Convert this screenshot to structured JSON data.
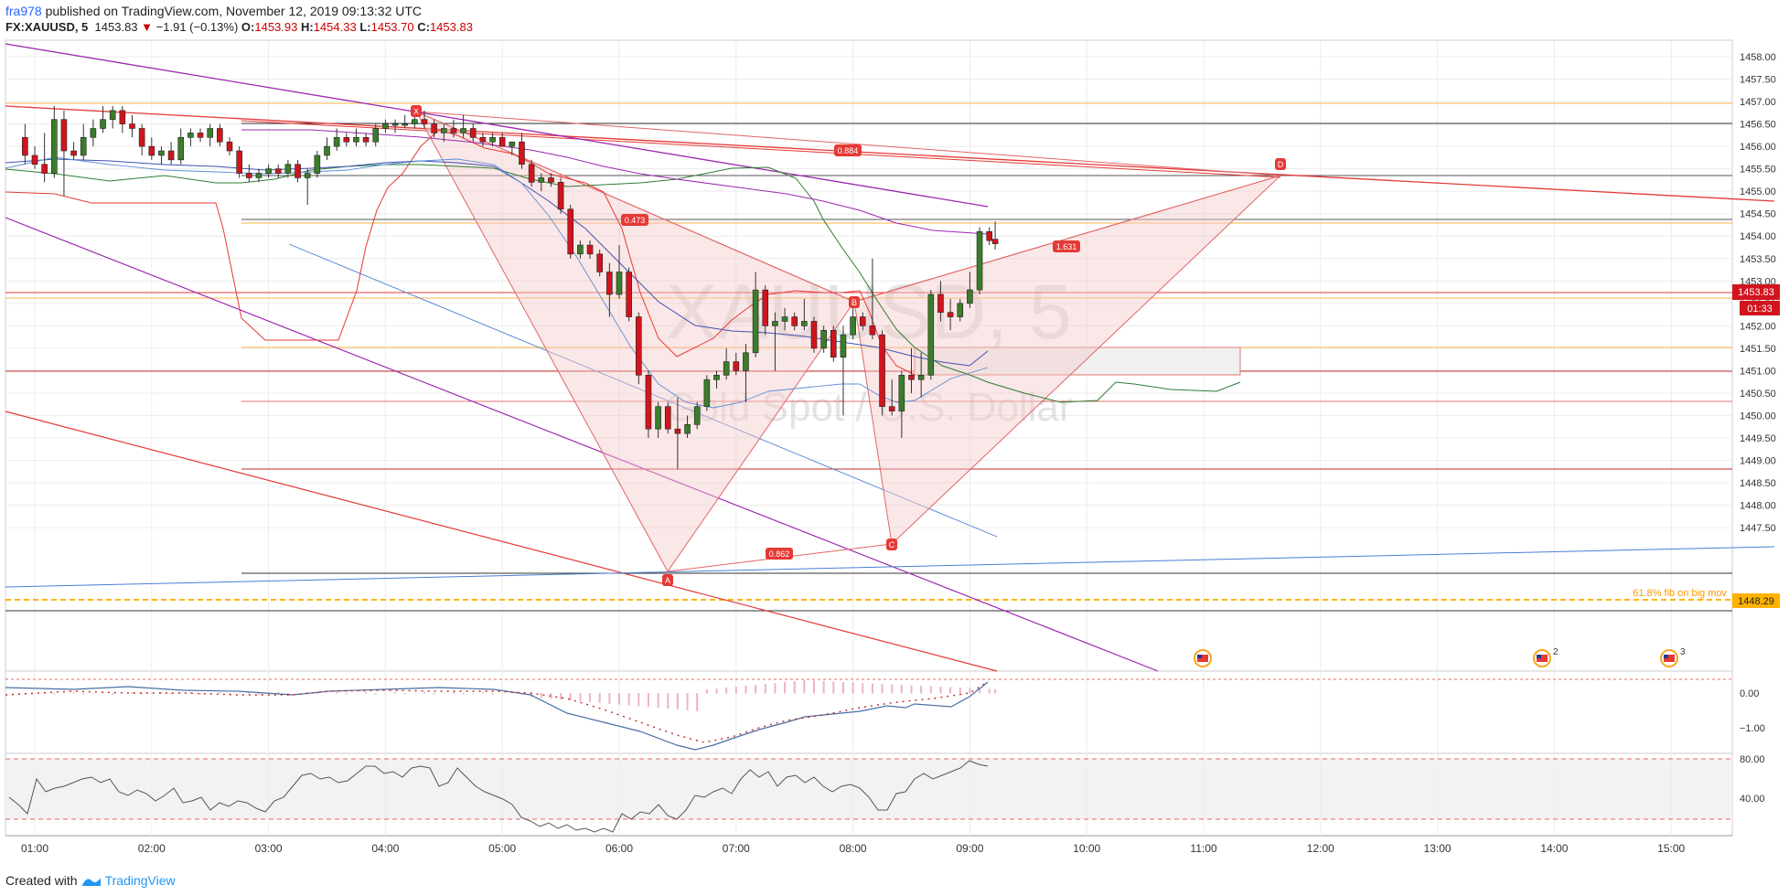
{
  "header": {
    "author": "fra978",
    "published_text": "published on TradingView.com, November 12, 2019 09:13:32 UTC",
    "symbol": "FX:XAUUSD, 5",
    "last": "1453.83",
    "change": "−1.91 (−0.13%)",
    "ohlc": {
      "o_label": "O:",
      "o": "1453.93",
      "h_label": "H:",
      "h": "1454.33",
      "l_label": "L:",
      "l": "1453.70",
      "c_label": "C:",
      "c": "1453.83"
    }
  },
  "watermark": {
    "title": "XAUUSD, 5",
    "subtitle": "Gold Spot / U.S. Dollar"
  },
  "price_tag": {
    "price": "1453.83",
    "countdown": "01:33"
  },
  "fib_label": "61.8% fib on big mov",
  "fib_price": "1448.29",
  "pattern_labels": {
    "X": "X",
    "A": "A",
    "B": "B",
    "C": "C",
    "D": "D",
    "r_xab": "0.473",
    "r_abc": "0.862",
    "r_bcd": "1.631",
    "r_xad": "0.884"
  },
  "event_badges": [
    "2",
    "3"
  ],
  "footer": {
    "created": "Created with",
    "brand": "TradingView"
  },
  "colors": {
    "bull": "#3a7d2a",
    "bear": "#d1141d",
    "pattern_fill": "#f4c9c9",
    "pattern_line": "#e06666",
    "fib": "#ffb300"
  },
  "chart_data": {
    "type": "candlestick",
    "symbol": "FX:XAUUSD",
    "interval": "5",
    "x_ticks": [
      "01:00",
      "02:00",
      "03:00",
      "04:00",
      "05:00",
      "06:00",
      "07:00",
      "08:00",
      "09:00",
      "10:00",
      "11:00",
      "12:00",
      "13:00",
      "14:00",
      "15:00"
    ],
    "y_ticks": [
      "1458.00",
      "1457.50",
      "1457.00",
      "1456.50",
      "1456.00",
      "1455.50",
      "1455.00",
      "1454.50",
      "1454.00",
      "1453.50",
      "1453.00",
      "1452.50",
      "1452.00",
      "1451.50",
      "1451.00",
      "1450.50",
      "1450.00",
      "1449.50",
      "1449.00",
      "1448.50",
      "1448.00",
      "1447.50"
    ],
    "ylim": [
      1447.2,
      1458.2
    ],
    "macd_ticks": [
      "0.00",
      "−1.00"
    ],
    "rsi_ticks": [
      "80.00",
      "40.00"
    ],
    "candles": [
      {
        "t": "00:55",
        "o": 1456.2,
        "h": 1456.5,
        "l": 1455.6,
        "c": 1455.8
      },
      {
        "t": "01:00",
        "o": 1455.8,
        "h": 1456.0,
        "l": 1455.5,
        "c": 1455.6
      },
      {
        "t": "01:05",
        "o": 1455.6,
        "h": 1456.3,
        "l": 1455.2,
        "c": 1455.4
      },
      {
        "t": "01:10",
        "o": 1455.4,
        "h": 1456.9,
        "l": 1455.3,
        "c": 1456.6
      },
      {
        "t": "01:15",
        "o": 1456.6,
        "h": 1456.8,
        "l": 1454.9,
        "c": 1455.9
      },
      {
        "t": "01:20",
        "o": 1455.9,
        "h": 1456.1,
        "l": 1455.7,
        "c": 1455.8
      },
      {
        "t": "01:25",
        "o": 1455.8,
        "h": 1456.5,
        "l": 1455.7,
        "c": 1456.2
      },
      {
        "t": "01:30",
        "o": 1456.2,
        "h": 1456.6,
        "l": 1456.0,
        "c": 1456.4
      },
      {
        "t": "01:35",
        "o": 1456.4,
        "h": 1456.9,
        "l": 1456.3,
        "c": 1456.6
      },
      {
        "t": "01:40",
        "o": 1456.6,
        "h": 1456.9,
        "l": 1456.4,
        "c": 1456.8
      },
      {
        "t": "01:45",
        "o": 1456.8,
        "h": 1456.9,
        "l": 1456.3,
        "c": 1456.5
      },
      {
        "t": "01:50",
        "o": 1456.5,
        "h": 1456.7,
        "l": 1456.2,
        "c": 1456.4
      },
      {
        "t": "01:55",
        "o": 1456.4,
        "h": 1456.5,
        "l": 1455.8,
        "c": 1456.0
      },
      {
        "t": "02:00",
        "o": 1456.0,
        "h": 1456.2,
        "l": 1455.7,
        "c": 1455.8
      },
      {
        "t": "02:05",
        "o": 1455.8,
        "h": 1456.0,
        "l": 1455.6,
        "c": 1455.9
      },
      {
        "t": "02:10",
        "o": 1455.9,
        "h": 1456.1,
        "l": 1455.6,
        "c": 1455.7
      },
      {
        "t": "02:15",
        "o": 1455.7,
        "h": 1456.4,
        "l": 1455.6,
        "c": 1456.2
      },
      {
        "t": "02:20",
        "o": 1456.2,
        "h": 1456.4,
        "l": 1456.0,
        "c": 1456.3
      },
      {
        "t": "02:25",
        "o": 1456.3,
        "h": 1456.4,
        "l": 1456.1,
        "c": 1456.2
      },
      {
        "t": "02:30",
        "o": 1456.2,
        "h": 1456.5,
        "l": 1456.0,
        "c": 1456.4
      },
      {
        "t": "02:35",
        "o": 1456.4,
        "h": 1456.5,
        "l": 1456.0,
        "c": 1456.1
      },
      {
        "t": "02:40",
        "o": 1456.1,
        "h": 1456.2,
        "l": 1455.8,
        "c": 1455.9
      },
      {
        "t": "02:45",
        "o": 1455.9,
        "h": 1456.0,
        "l": 1455.3,
        "c": 1455.4
      },
      {
        "t": "02:50",
        "o": 1455.4,
        "h": 1455.6,
        "l": 1455.2,
        "c": 1455.3
      },
      {
        "t": "02:55",
        "o": 1455.3,
        "h": 1455.5,
        "l": 1455.2,
        "c": 1455.4
      },
      {
        "t": "03:00",
        "o": 1455.4,
        "h": 1455.6,
        "l": 1455.3,
        "c": 1455.5
      },
      {
        "t": "03:05",
        "o": 1455.5,
        "h": 1455.6,
        "l": 1455.3,
        "c": 1455.4
      },
      {
        "t": "03:10",
        "o": 1455.4,
        "h": 1455.7,
        "l": 1455.3,
        "c": 1455.6
      },
      {
        "t": "03:15",
        "o": 1455.6,
        "h": 1455.7,
        "l": 1455.2,
        "c": 1455.3
      },
      {
        "t": "03:20",
        "o": 1455.3,
        "h": 1455.5,
        "l": 1454.7,
        "c": 1455.4
      },
      {
        "t": "03:25",
        "o": 1455.4,
        "h": 1455.9,
        "l": 1455.3,
        "c": 1455.8
      },
      {
        "t": "03:30",
        "o": 1455.8,
        "h": 1456.2,
        "l": 1455.7,
        "c": 1456.0
      },
      {
        "t": "03:35",
        "o": 1456.0,
        "h": 1456.4,
        "l": 1455.9,
        "c": 1456.2
      },
      {
        "t": "03:40",
        "o": 1456.2,
        "h": 1456.3,
        "l": 1456.0,
        "c": 1456.1
      },
      {
        "t": "03:45",
        "o": 1456.1,
        "h": 1456.4,
        "l": 1456.0,
        "c": 1456.2
      },
      {
        "t": "03:50",
        "o": 1456.2,
        "h": 1456.3,
        "l": 1456.0,
        "c": 1456.1
      },
      {
        "t": "03:55",
        "o": 1456.1,
        "h": 1456.5,
        "l": 1456.0,
        "c": 1456.4
      },
      {
        "t": "04:00",
        "o": 1456.4,
        "h": 1456.6,
        "l": 1456.3,
        "c": 1456.5
      },
      {
        "t": "04:05",
        "o": 1456.5,
        "h": 1456.6,
        "l": 1456.3,
        "c": 1456.5
      },
      {
        "t": "04:10",
        "o": 1456.5,
        "h": 1456.7,
        "l": 1456.4,
        "c": 1456.5
      },
      {
        "t": "04:15",
        "o": 1456.5,
        "h": 1456.8,
        "l": 1456.4,
        "c": 1456.6
      },
      {
        "t": "04:20",
        "o": 1456.6,
        "h": 1456.8,
        "l": 1456.4,
        "c": 1456.5
      },
      {
        "t": "04:25",
        "o": 1456.5,
        "h": 1456.6,
        "l": 1456.2,
        "c": 1456.3
      },
      {
        "t": "04:30",
        "o": 1456.3,
        "h": 1456.5,
        "l": 1456.1,
        "c": 1456.4
      },
      {
        "t": "04:35",
        "o": 1456.4,
        "h": 1456.6,
        "l": 1456.2,
        "c": 1456.3
      },
      {
        "t": "04:40",
        "o": 1456.3,
        "h": 1456.7,
        "l": 1456.2,
        "c": 1456.4
      },
      {
        "t": "04:45",
        "o": 1456.4,
        "h": 1456.5,
        "l": 1456.1,
        "c": 1456.2
      },
      {
        "t": "04:50",
        "o": 1456.2,
        "h": 1456.3,
        "l": 1456.0,
        "c": 1456.1
      },
      {
        "t": "04:55",
        "o": 1456.1,
        "h": 1456.3,
        "l": 1456.0,
        "c": 1456.2
      },
      {
        "t": "05:00",
        "o": 1456.2,
        "h": 1456.3,
        "l": 1456.0,
        "c": 1456.0
      },
      {
        "t": "05:05",
        "o": 1456.0,
        "h": 1456.1,
        "l": 1455.8,
        "c": 1456.1
      },
      {
        "t": "05:10",
        "o": 1456.1,
        "h": 1456.3,
        "l": 1455.5,
        "c": 1455.6
      },
      {
        "t": "05:15",
        "o": 1455.6,
        "h": 1455.7,
        "l": 1455.1,
        "c": 1455.2
      },
      {
        "t": "05:20",
        "o": 1455.2,
        "h": 1455.4,
        "l": 1455.0,
        "c": 1455.3
      },
      {
        "t": "05:25",
        "o": 1455.3,
        "h": 1455.4,
        "l": 1455.1,
        "c": 1455.2
      },
      {
        "t": "05:30",
        "o": 1455.2,
        "h": 1455.3,
        "l": 1454.5,
        "c": 1454.6
      },
      {
        "t": "05:35",
        "o": 1454.6,
        "h": 1454.7,
        "l": 1453.5,
        "c": 1453.6
      },
      {
        "t": "05:40",
        "o": 1453.6,
        "h": 1453.9,
        "l": 1453.5,
        "c": 1453.8
      },
      {
        "t": "05:45",
        "o": 1453.8,
        "h": 1453.9,
        "l": 1453.5,
        "c": 1453.6
      },
      {
        "t": "05:50",
        "o": 1453.6,
        "h": 1453.7,
        "l": 1453.1,
        "c": 1453.2
      },
      {
        "t": "05:55",
        "o": 1453.2,
        "h": 1453.4,
        "l": 1452.2,
        "c": 1452.7
      },
      {
        "t": "06:00",
        "o": 1452.7,
        "h": 1453.8,
        "l": 1452.6,
        "c": 1453.2
      },
      {
        "t": "06:05",
        "o": 1453.2,
        "h": 1453.3,
        "l": 1452.1,
        "c": 1452.2
      },
      {
        "t": "06:10",
        "o": 1452.2,
        "h": 1452.3,
        "l": 1450.7,
        "c": 1450.9
      },
      {
        "t": "06:15",
        "o": 1450.9,
        "h": 1451.0,
        "l": 1449.5,
        "c": 1449.7
      },
      {
        "t": "06:20",
        "o": 1449.7,
        "h": 1450.3,
        "l": 1449.5,
        "c": 1450.2
      },
      {
        "t": "06:25",
        "o": 1450.2,
        "h": 1450.3,
        "l": 1449.6,
        "c": 1449.7
      },
      {
        "t": "06:30",
        "o": 1449.7,
        "h": 1450.4,
        "l": 1448.8,
        "c": 1449.6
      },
      {
        "t": "06:35",
        "o": 1449.6,
        "h": 1450.0,
        "l": 1449.5,
        "c": 1449.8
      },
      {
        "t": "06:40",
        "o": 1449.8,
        "h": 1450.3,
        "l": 1449.7,
        "c": 1450.2
      },
      {
        "t": "06:45",
        "o": 1450.2,
        "h": 1450.9,
        "l": 1450.1,
        "c": 1450.8
      },
      {
        "t": "06:50",
        "o": 1450.8,
        "h": 1451.0,
        "l": 1450.6,
        "c": 1450.9
      },
      {
        "t": "06:55",
        "o": 1450.9,
        "h": 1451.5,
        "l": 1450.8,
        "c": 1451.2
      },
      {
        "t": "07:00",
        "o": 1451.2,
        "h": 1451.4,
        "l": 1450.9,
        "c": 1451.0
      },
      {
        "t": "07:05",
        "o": 1451.0,
        "h": 1451.6,
        "l": 1450.3,
        "c": 1451.4
      },
      {
        "t": "07:10",
        "o": 1451.4,
        "h": 1453.2,
        "l": 1451.3,
        "c": 1452.8
      },
      {
        "t": "07:15",
        "o": 1452.8,
        "h": 1452.9,
        "l": 1451.8,
        "c": 1452.0
      },
      {
        "t": "07:20",
        "o": 1452.0,
        "h": 1452.3,
        "l": 1451.0,
        "c": 1452.1
      },
      {
        "t": "07:25",
        "o": 1452.1,
        "h": 1452.4,
        "l": 1451.9,
        "c": 1452.2
      },
      {
        "t": "07:30",
        "o": 1452.2,
        "h": 1452.3,
        "l": 1451.9,
        "c": 1452.0
      },
      {
        "t": "07:35",
        "o": 1452.0,
        "h": 1452.6,
        "l": 1451.9,
        "c": 1452.1
      },
      {
        "t": "07:40",
        "o": 1452.1,
        "h": 1452.2,
        "l": 1451.4,
        "c": 1451.5
      },
      {
        "t": "07:45",
        "o": 1451.5,
        "h": 1452.0,
        "l": 1451.4,
        "c": 1451.9
      },
      {
        "t": "07:50",
        "o": 1451.9,
        "h": 1452.0,
        "l": 1451.2,
        "c": 1451.3
      },
      {
        "t": "07:55",
        "o": 1451.3,
        "h": 1452.0,
        "l": 1450.0,
        "c": 1451.8
      },
      {
        "t": "08:00",
        "o": 1451.8,
        "h": 1452.4,
        "l": 1451.7,
        "c": 1452.2
      },
      {
        "t": "08:05",
        "o": 1452.2,
        "h": 1452.3,
        "l": 1451.9,
        "c": 1452.0
      },
      {
        "t": "08:10",
        "o": 1452.0,
        "h": 1453.5,
        "l": 1451.7,
        "c": 1451.8
      },
      {
        "t": "08:15",
        "o": 1451.8,
        "h": 1451.9,
        "l": 1450.0,
        "c": 1450.2
      },
      {
        "t": "08:20",
        "o": 1450.2,
        "h": 1450.8,
        "l": 1450.0,
        "c": 1450.1
      },
      {
        "t": "08:25",
        "o": 1450.1,
        "h": 1451.0,
        "l": 1449.5,
        "c": 1450.9
      },
      {
        "t": "08:30",
        "o": 1450.9,
        "h": 1451.5,
        "l": 1450.5,
        "c": 1450.8
      },
      {
        "t": "08:35",
        "o": 1450.8,
        "h": 1451.4,
        "l": 1450.4,
        "c": 1450.9
      },
      {
        "t": "08:40",
        "o": 1450.9,
        "h": 1452.8,
        "l": 1450.8,
        "c": 1452.7
      },
      {
        "t": "08:45",
        "o": 1452.7,
        "h": 1453.0,
        "l": 1452.1,
        "c": 1452.3
      },
      {
        "t": "08:50",
        "o": 1452.3,
        "h": 1452.6,
        "l": 1451.9,
        "c": 1452.2
      },
      {
        "t": "08:55",
        "o": 1452.2,
        "h": 1452.6,
        "l": 1452.1,
        "c": 1452.5
      },
      {
        "t": "09:00",
        "o": 1452.5,
        "h": 1453.2,
        "l": 1452.4,
        "c": 1452.8
      },
      {
        "t": "09:05",
        "o": 1452.8,
        "h": 1454.2,
        "l": 1452.7,
        "c": 1454.1
      },
      {
        "t": "09:10",
        "o": 1454.1,
        "h": 1454.2,
        "l": 1453.8,
        "c": 1453.9
      },
      {
        "t": "09:13",
        "o": 1453.93,
        "h": 1454.33,
        "l": 1453.7,
        "c": 1453.83
      }
    ]
  }
}
